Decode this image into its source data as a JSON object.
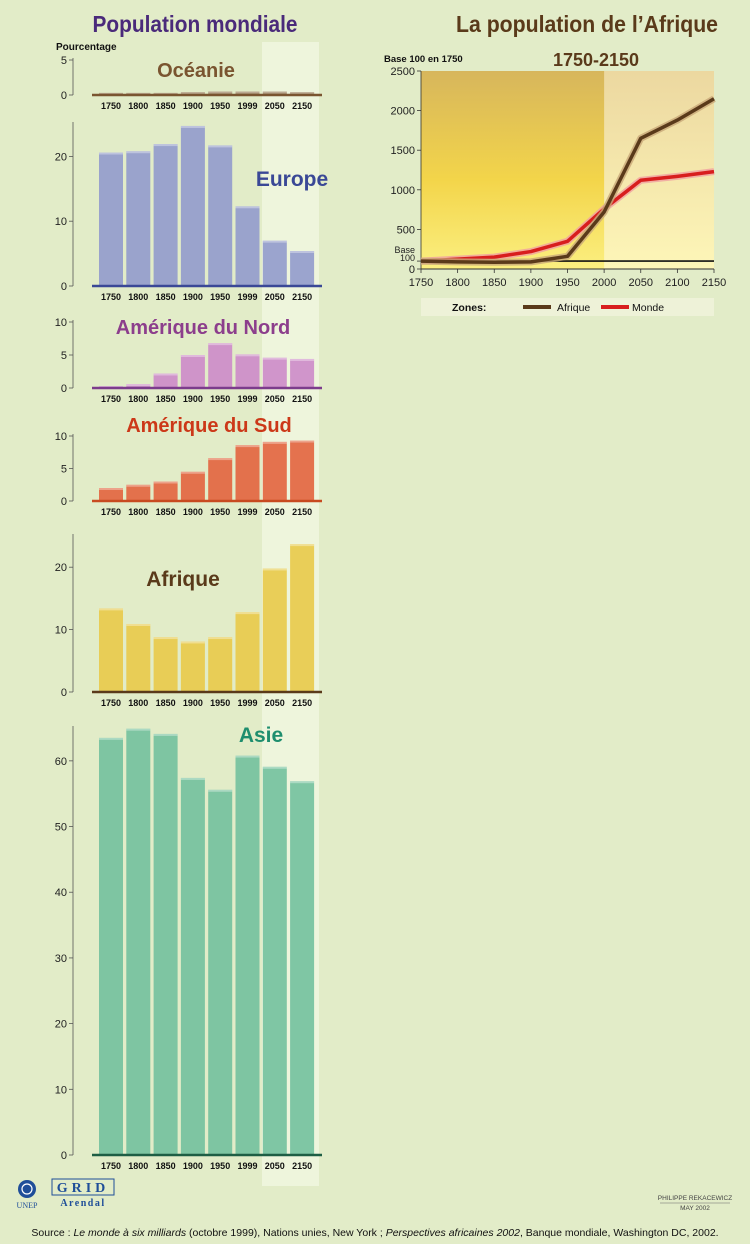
{
  "header": {
    "left_title": "Population mondiale",
    "right_title": "La population de l’Afrique"
  },
  "colors": {
    "background": "#e2ecc8",
    "future_band": "#eef5dc",
    "oceanie": "#7a5530",
    "europe": "#8f99cc",
    "amerique_nord": "#cc88c8",
    "amerique_sud": "#e2603a",
    "afrique": "#e8c846",
    "asie": "#6fbf9c",
    "afrique_line": "#5a3a1a",
    "monde_line": "#d81e1e"
  },
  "chart_data": [
    {
      "type": "bar",
      "region_key": "oceanie",
      "title": "Océanie",
      "ylabel": "Pourcentage",
      "categories": [
        "1750",
        "1800",
        "1850",
        "1900",
        "1950",
        "1999",
        "2050",
        "2150"
      ],
      "values": [
        0.3,
        0.3,
        0.3,
        0.4,
        0.5,
        0.5,
        0.5,
        0.4
      ],
      "ylim": [
        0,
        5
      ],
      "yticks": [
        0,
        5
      ],
      "title_color": "#7a5530",
      "bar_color": "#8a6a44",
      "axis_color": "#7a5530"
    },
    {
      "type": "bar",
      "region_key": "europe",
      "title": "Europe",
      "categories": [
        "1750",
        "1800",
        "1850",
        "1900",
        "1950",
        "1999",
        "2050",
        "2150"
      ],
      "values": [
        20.6,
        20.8,
        21.9,
        24.7,
        21.7,
        12.3,
        7.0,
        5.4
      ],
      "ylim": [
        0,
        25
      ],
      "yticks": [
        0,
        10,
        20
      ],
      "title_color": "#3a4896",
      "bar_color": "#8f99cc",
      "axis_color": "#3a4896"
    },
    {
      "type": "bar",
      "region_key": "amerique_nord",
      "title": "Amérique du Nord",
      "categories": [
        "1750",
        "1800",
        "1850",
        "1900",
        "1950",
        "1999",
        "2050",
        "2150"
      ],
      "values": [
        0.3,
        0.6,
        2.2,
        5.0,
        6.8,
        5.1,
        4.6,
        4.4
      ],
      "ylim": [
        0,
        10
      ],
      "yticks": [
        0,
        5,
        10
      ],
      "title_color": "#8c3e8c",
      "bar_color": "#cc88c8",
      "axis_color": "#7c3c8c"
    },
    {
      "type": "bar",
      "region_key": "amerique_sud",
      "title": "Amérique du Sud",
      "categories": [
        "1750",
        "1800",
        "1850",
        "1900",
        "1950",
        "1999",
        "2050",
        "2150"
      ],
      "values": [
        2.0,
        2.5,
        3.0,
        4.5,
        6.6,
        8.6,
        9.1,
        9.3
      ],
      "ylim": [
        0,
        10
      ],
      "yticks": [
        0,
        5,
        10
      ],
      "title_color": "#cc3818",
      "bar_color": "#e2603a",
      "axis_color": "#c84a20"
    },
    {
      "type": "bar",
      "region_key": "afrique",
      "title": "Afrique",
      "categories": [
        "1750",
        "1800",
        "1850",
        "1900",
        "1950",
        "1999",
        "2050",
        "2150"
      ],
      "values": [
        13.4,
        10.9,
        8.8,
        8.1,
        8.8,
        12.8,
        19.8,
        23.7
      ],
      "ylim": [
        0,
        25
      ],
      "yticks": [
        0,
        10,
        20
      ],
      "title_color": "#5a3a1a",
      "bar_color": "#e8c846",
      "axis_color": "#5a3a1a"
    },
    {
      "type": "bar",
      "region_key": "asie",
      "title": "Asie",
      "categories": [
        "1750",
        "1800",
        "1850",
        "1900",
        "1950",
        "1999",
        "2050",
        "2150"
      ],
      "values": [
        63.5,
        64.9,
        64.1,
        57.4,
        55.6,
        60.8,
        59.1,
        56.9
      ],
      "ylim": [
        0,
        65
      ],
      "yticks": [
        0,
        10,
        20,
        30,
        40,
        50,
        60
      ],
      "title_color": "#1e8e6e",
      "bar_color": "#6fbf9c",
      "axis_color": "#1e5e44"
    },
    {
      "type": "line",
      "title": "1750-2150",
      "ylabel": "Base 100 en 1750",
      "x": [
        1750,
        1800,
        1850,
        1900,
        1950,
        2000,
        2050,
        2100,
        2150
      ],
      "xticks": [
        "1750",
        "1800",
        "1850",
        "1900",
        "1950",
        "2000",
        "2050",
        "2100",
        "2150"
      ],
      "ylim": [
        0,
        2500
      ],
      "yticks": [
        "0",
        "100",
        "500",
        "1000",
        "1500",
        "2000",
        "2500"
      ],
      "base_label": "Base",
      "legend_label": "Zones:",
      "series": [
        {
          "name": "Afrique",
          "values": [
            100,
            90,
            85,
            90,
            160,
            720,
            1650,
            1880,
            2150
          ],
          "color": "#5a3a1a"
        },
        {
          "name": "Monde",
          "values": [
            100,
            125,
            150,
            220,
            350,
            760,
            1120,
            1170,
            1230
          ],
          "color": "#d81e1e"
        }
      ]
    }
  ],
  "footer": {
    "logo_unep": "UNEP",
    "logo_grid": "GRID",
    "logo_arendal": "Arendal",
    "author": "PHILIPPE REKACEWICZ",
    "date": "MAY 2002",
    "source": {
      "prefix": "Source : ",
      "book1": "Le monde à six milliards",
      "part1": " (octobre 1999), Nations unies, New York ; ",
      "book2": "Perspectives africaines 2002",
      "part2": ", Banque mondiale, Washington DC, 2002."
    }
  }
}
